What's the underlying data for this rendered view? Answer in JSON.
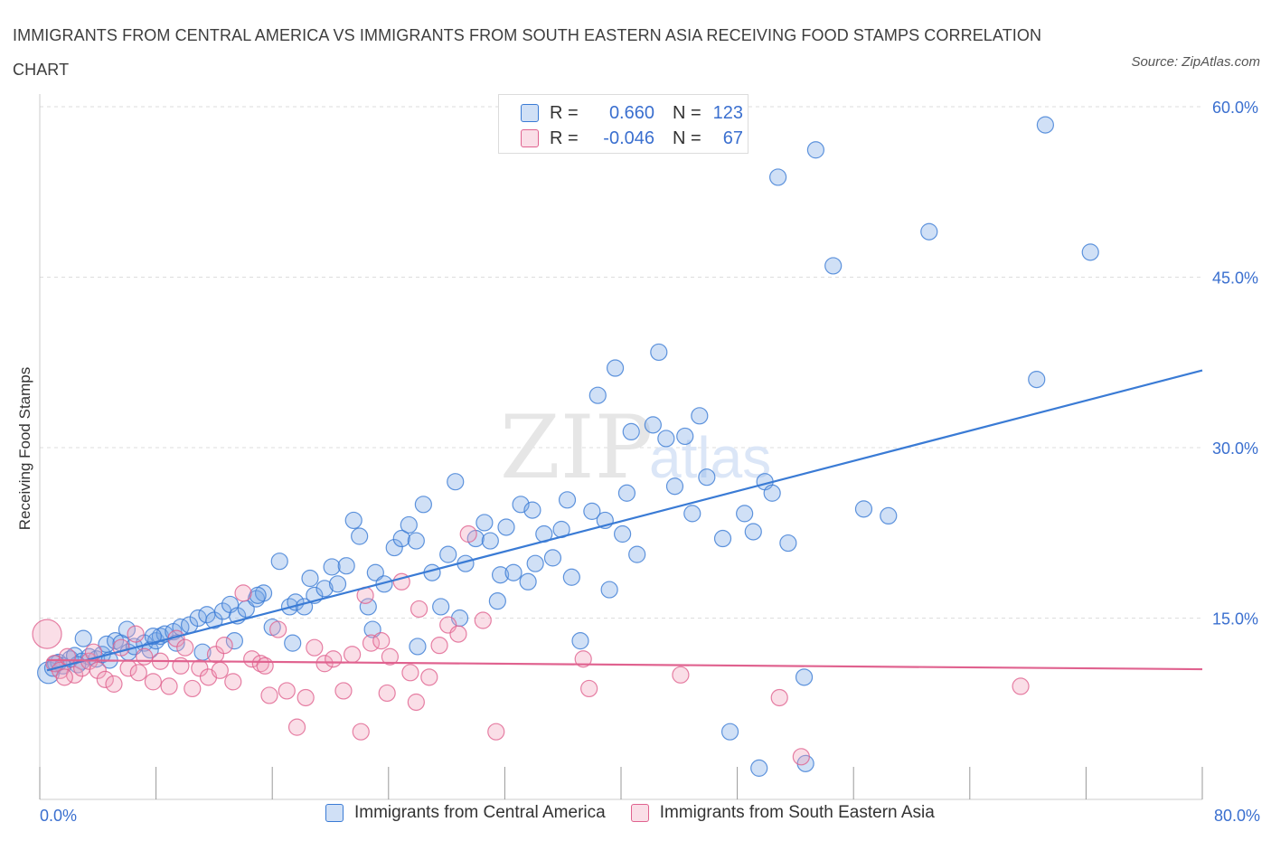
{
  "title": "IMMIGRANTS FROM CENTRAL AMERICA VS IMMIGRANTS FROM SOUTH EASTERN ASIA RECEIVING FOOD STAMPS CORRELATION CHART",
  "source": "Source: ZipAtlas.com",
  "watermark": {
    "zip": "ZIP",
    "atlas": "atlas"
  },
  "colors": {
    "blue": "#3a7bd5",
    "blue_fill": "rgba(120,165,230,0.35)",
    "pink": "#e0628f",
    "pink_fill": "rgba(240,160,185,0.35)",
    "axis_text": "#3a6fcf",
    "grid": "#dddddd"
  },
  "legend": {
    "rows": [
      {
        "r_label": "R =",
        "r_value": "0.660",
        "n_label": "N =",
        "n_value": "123"
      },
      {
        "r_label": "R =",
        "r_value": "-0.046",
        "n_label": "N =",
        "n_value": "67"
      }
    ]
  },
  "chart_data": {
    "type": "scatter",
    "title": "IMMIGRANTS FROM CENTRAL AMERICA VS IMMIGRANTS FROM SOUTH EASTERN ASIA RECEIVING FOOD STAMPS CORRELATION CHART",
    "xlabel": "",
    "ylabel": "Receiving Food Stamps",
    "xlim": [
      0,
      80
    ],
    "ylim": [
      0,
      60
    ],
    "x_tick_labels": [
      {
        "value": 0,
        "label": "0.0%"
      },
      {
        "value": 80,
        "label": "80.0%"
      }
    ],
    "y_tick_labels": [
      {
        "value": 15,
        "label": "15.0%"
      },
      {
        "value": 30,
        "label": "30.0%"
      },
      {
        "value": 45,
        "label": "45.0%"
      },
      {
        "value": 60,
        "label": "60.0%"
      }
    ],
    "grid": "horizontal dashed",
    "legend_placement": "bottom-center",
    "series": [
      {
        "name": "Immigrants from Central America",
        "color": "#3a7bd5",
        "R": 0.66,
        "N": 123,
        "trend": {
          "x": [
            0.5,
            80
          ],
          "y": [
            10.4,
            36.8
          ]
        },
        "points": [
          [
            0.6,
            10.2
          ],
          [
            0.9,
            10.6
          ],
          [
            1.3,
            11.1
          ],
          [
            1.6,
            10.8
          ],
          [
            2.1,
            11.4
          ],
          [
            2.4,
            11.7
          ],
          [
            2.9,
            11.2
          ],
          [
            3.4,
            11.6
          ],
          [
            3.9,
            11.4
          ],
          [
            4.3,
            11.8
          ],
          [
            4.6,
            12.7
          ],
          [
            5.2,
            13.0
          ],
          [
            5.6,
            12.8
          ],
          [
            6.1,
            12.0
          ],
          [
            6.5,
            12.5
          ],
          [
            7.2,
            12.8
          ],
          [
            7.6,
            12.2
          ],
          [
            8.0,
            13.0
          ],
          [
            8.3,
            13.4
          ],
          [
            8.6,
            13.6
          ],
          [
            9.2,
            13.8
          ],
          [
            9.7,
            14.2
          ],
          [
            10.3,
            14.4
          ],
          [
            10.9,
            15.0
          ],
          [
            11.5,
            15.3
          ],
          [
            12.0,
            14.8
          ],
          [
            12.6,
            15.6
          ],
          [
            13.1,
            16.2
          ],
          [
            13.6,
            15.2
          ],
          [
            14.2,
            15.8
          ],
          [
            14.9,
            16.7
          ],
          [
            15.4,
            17.2
          ],
          [
            16.0,
            14.2
          ],
          [
            16.5,
            20.0
          ],
          [
            17.2,
            16.0
          ],
          [
            17.6,
            16.4
          ],
          [
            18.2,
            16.0
          ],
          [
            18.9,
            17.0
          ],
          [
            19.6,
            17.6
          ],
          [
            20.1,
            19.5
          ],
          [
            20.5,
            18.0
          ],
          [
            21.1,
            19.6
          ],
          [
            21.6,
            23.6
          ],
          [
            22.0,
            22.2
          ],
          [
            22.6,
            16.0
          ],
          [
            23.1,
            19.0
          ],
          [
            23.7,
            18.0
          ],
          [
            24.4,
            21.2
          ],
          [
            24.9,
            22.0
          ],
          [
            25.4,
            23.2
          ],
          [
            25.9,
            21.8
          ],
          [
            26.4,
            25.0
          ],
          [
            27.0,
            19.0
          ],
          [
            27.6,
            16.0
          ],
          [
            28.1,
            20.6
          ],
          [
            28.6,
            27.0
          ],
          [
            29.3,
            19.8
          ],
          [
            30.0,
            22.0
          ],
          [
            30.6,
            23.4
          ],
          [
            31.0,
            21.8
          ],
          [
            31.7,
            18.8
          ],
          [
            32.1,
            23.0
          ],
          [
            32.6,
            19.0
          ],
          [
            33.1,
            25.0
          ],
          [
            33.6,
            18.2
          ],
          [
            34.1,
            19.8
          ],
          [
            34.7,
            22.4
          ],
          [
            35.3,
            20.3
          ],
          [
            35.9,
            22.8
          ],
          [
            36.3,
            25.4
          ],
          [
            37.2,
            13.0
          ],
          [
            38.0,
            24.4
          ],
          [
            38.4,
            34.6
          ],
          [
            38.9,
            23.6
          ],
          [
            39.6,
            37.0
          ],
          [
            40.1,
            22.4
          ],
          [
            40.7,
            31.4
          ],
          [
            41.1,
            20.6
          ],
          [
            42.2,
            32.0
          ],
          [
            42.6,
            38.4
          ],
          [
            43.1,
            30.8
          ],
          [
            43.7,
            26.6
          ],
          [
            44.4,
            31.0
          ],
          [
            44.9,
            24.2
          ],
          [
            45.4,
            32.8
          ],
          [
            47.0,
            22.0
          ],
          [
            47.5,
            5.0
          ],
          [
            48.5,
            24.2
          ],
          [
            49.1,
            22.6
          ],
          [
            49.9,
            27.0
          ],
          [
            50.4,
            26.0
          ],
          [
            50.8,
            53.8
          ],
          [
            51.5,
            21.6
          ],
          [
            52.6,
            9.8
          ],
          [
            53.4,
            56.2
          ],
          [
            54.6,
            46.0
          ],
          [
            56.7,
            24.6
          ],
          [
            58.4,
            24.0
          ],
          [
            61.2,
            49.0
          ],
          [
            68.6,
            36.0
          ],
          [
            69.2,
            58.4
          ],
          [
            72.3,
            47.2
          ],
          [
            49.5,
            1.8
          ],
          [
            52.7,
            2.2
          ],
          [
            6.0,
            14.0
          ],
          [
            7.8,
            13.4
          ],
          [
            9.4,
            12.8
          ],
          [
            11.2,
            12.0
          ],
          [
            13.4,
            13.0
          ],
          [
            15.0,
            17.0
          ],
          [
            18.6,
            18.5
          ],
          [
            26.0,
            12.5
          ],
          [
            31.5,
            16.5
          ],
          [
            36.6,
            18.6
          ],
          [
            39.2,
            17.5
          ],
          [
            22.9,
            14.0
          ],
          [
            28.9,
            15.0
          ],
          [
            33.9,
            24.5
          ],
          [
            40.4,
            26.0
          ],
          [
            45.9,
            27.4
          ],
          [
            3.0,
            13.2
          ],
          [
            1.1,
            11.0
          ],
          [
            2.6,
            10.9
          ],
          [
            4.8,
            11.3
          ],
          [
            17.4,
            12.8
          ]
        ]
      },
      {
        "name": "Immigrants from South Eastern Asia",
        "color": "#e0628f",
        "R": -0.046,
        "N": 67,
        "trend": {
          "x": [
            0.5,
            80
          ],
          "y": [
            11.3,
            10.5
          ]
        },
        "points": [
          [
            0.5,
            13.6
          ],
          [
            1.0,
            11.0
          ],
          [
            1.4,
            10.4
          ],
          [
            1.9,
            11.6
          ],
          [
            2.4,
            10.0
          ],
          [
            2.9,
            10.6
          ],
          [
            3.4,
            11.2
          ],
          [
            4.0,
            10.4
          ],
          [
            4.5,
            9.6
          ],
          [
            5.1,
            9.2
          ],
          [
            5.6,
            12.4
          ],
          [
            6.1,
            10.6
          ],
          [
            6.6,
            13.6
          ],
          [
            7.2,
            11.6
          ],
          [
            7.8,
            9.4
          ],
          [
            8.3,
            11.2
          ],
          [
            8.9,
            9.0
          ],
          [
            9.4,
            13.2
          ],
          [
            10.0,
            12.4
          ],
          [
            10.5,
            8.8
          ],
          [
            11.0,
            10.6
          ],
          [
            11.6,
            9.8
          ],
          [
            12.1,
            11.8
          ],
          [
            12.7,
            12.6
          ],
          [
            13.3,
            9.4
          ],
          [
            14.0,
            17.2
          ],
          [
            14.6,
            11.4
          ],
          [
            15.2,
            11.0
          ],
          [
            15.8,
            8.2
          ],
          [
            16.4,
            14.0
          ],
          [
            17.0,
            8.6
          ],
          [
            17.7,
            5.4
          ],
          [
            18.3,
            8.0
          ],
          [
            18.9,
            12.4
          ],
          [
            19.6,
            11.0
          ],
          [
            20.2,
            11.4
          ],
          [
            20.9,
            8.6
          ],
          [
            21.5,
            11.8
          ],
          [
            22.1,
            5.0
          ],
          [
            22.8,
            12.8
          ],
          [
            23.5,
            13.0
          ],
          [
            24.1,
            11.6
          ],
          [
            24.9,
            18.2
          ],
          [
            25.5,
            10.2
          ],
          [
            26.1,
            15.8
          ],
          [
            26.8,
            9.8
          ],
          [
            27.5,
            12.6
          ],
          [
            28.1,
            14.4
          ],
          [
            28.8,
            13.6
          ],
          [
            29.5,
            22.4
          ],
          [
            30.5,
            14.8
          ],
          [
            31.4,
            5.0
          ],
          [
            37.4,
            11.4
          ],
          [
            37.8,
            8.8
          ],
          [
            44.1,
            10.0
          ],
          [
            50.9,
            8.0
          ],
          [
            52.4,
            2.8
          ],
          [
            67.5,
            9.0
          ],
          [
            1.7,
            9.8
          ],
          [
            3.7,
            12.0
          ],
          [
            6.8,
            10.2
          ],
          [
            9.7,
            10.8
          ],
          [
            12.4,
            10.4
          ],
          [
            15.5,
            10.8
          ],
          [
            22.4,
            17.0
          ],
          [
            25.9,
            7.6
          ],
          [
            23.9,
            8.4
          ]
        ]
      }
    ]
  },
  "bottom_legend": [
    {
      "label": "Immigrants from Central America"
    },
    {
      "label": "Immigrants from South Eastern Asia"
    }
  ]
}
